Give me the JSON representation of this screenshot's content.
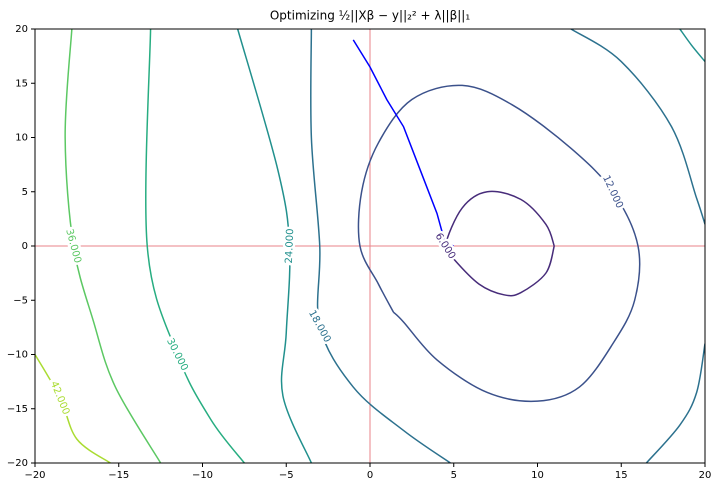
{
  "chart_data": {
    "type": "contour",
    "title": "Optimizing ½||Xβ − y||₂² + λ||β||₁",
    "xlim": [
      -20,
      20
    ],
    "ylim": [
      -20,
      20
    ],
    "xticks": [
      {
        "value": -20,
        "label": "−20"
      },
      {
        "value": -15,
        "label": "−15"
      },
      {
        "value": -10,
        "label": "−10"
      },
      {
        "value": -5,
        "label": "−5"
      },
      0,
      5,
      10,
      15,
      20
    ],
    "yticks": [
      {
        "value": -20,
        "label": "−20"
      },
      {
        "value": -15,
        "label": "−15"
      },
      {
        "value": -10,
        "label": "−10"
      },
      {
        "value": -5,
        "label": "−5"
      },
      0,
      5,
      10,
      15,
      20
    ],
    "axhline": 0,
    "axvline": 0,
    "ref_color": "#e8838a",
    "contours": [
      {
        "level": {
          "value": 6,
          "label": "6.000"
        },
        "color": "#472c7a",
        "pieces": [
          {
            "x": [
              11,
              10.5,
              9,
              7,
              5.5,
              4.5,
              5,
              6.5,
              8,
              9,
              10.5,
              11
            ],
            "y": [
              0,
              2,
              4.3,
              5,
              3.5,
              0,
              -1.2,
              -3.5,
              -4.5,
              -4.3,
              -2.5,
              0
            ]
          }
        ]
      },
      {
        "level": {
          "value": 12,
          "label": "12.000"
        },
        "color": "#3b518b",
        "pieces": [
          {
            "x": [
              1.4,
              0.5,
              -0.6,
              -0.5,
              0.5,
              2.5,
              5.5,
              8.5,
              12,
              14.5,
              16,
              15.8,
              14.5,
              12.5,
              10,
              7,
              4,
              2,
              1.4
            ],
            "y": [
              -6.1,
              -3.5,
              0,
              5,
              9.5,
              13.5,
              14.8,
              13,
              9,
              5,
              0,
              -5,
              -9,
              -13,
              -14.3,
              -13.5,
              -10.5,
              -7,
              -6.1
            ]
          }
        ]
      },
      {
        "level": {
          "value": 18,
          "label": "18.000"
        },
        "color": "#2c718e",
        "pieces": [
          {
            "x": [
              -3.5,
              -3.5,
              -3,
              -3,
              -1,
              2,
              4.8
            ],
            "y": [
              20,
              10,
              0,
              -7.4,
              -13,
              -17,
              -20
            ]
          },
          {
            "x": [
              12,
              15,
              18,
              19.5,
              20
            ],
            "y": [
              20,
              17,
              11,
              4.4,
              2
            ]
          },
          {
            "x": [
              20,
              19.5,
              18.5,
              16.5
            ],
            "y": [
              -9,
              -13.5,
              -16.5,
              -20
            ]
          }
        ]
      },
      {
        "level": {
          "value": 24,
          "label": "24.000"
        },
        "color": "#21908d",
        "pieces": [
          {
            "x": [
              -7.9,
              -5.5,
              -4.8,
              -5,
              -5.2,
              -3.5
            ],
            "y": [
              20,
              7,
              0,
              -8,
              -13.8,
              -20
            ]
          },
          {
            "x": [
              18.5,
              19.2,
              20
            ],
            "y": [
              20,
              18.5,
              17
            ]
          }
        ]
      },
      {
        "level": {
          "value": 30,
          "label": "30.000"
        },
        "color": "#27ad81",
        "pieces": [
          {
            "x": [
              -13.1,
              -13.3,
              -11.5,
              -9.5,
              -7.5
            ],
            "y": [
              20,
              0,
              -10,
              -16,
              -20
            ]
          }
        ]
      },
      {
        "level": {
          "value": 36,
          "label": "36.000"
        },
        "color": "#5cc863",
        "pieces": [
          {
            "x": [
              -17.8,
              -18.2,
              -17.7,
              -16.5,
              -15.2,
              -12.5
            ],
            "y": [
              20,
              10,
              0,
              -7,
              -13,
              -20
            ]
          }
        ]
      },
      {
        "level": {
          "value": 42,
          "label": "42.000"
        },
        "color": "#aadc32",
        "pieces": [
          {
            "x": [
              -20,
              -18.5,
              -17.5,
              -15.5
            ],
            "y": [
              -10,
              -14,
              -17.8,
              -20
            ]
          }
        ]
      }
    ],
    "series": [
      {
        "color": "#0000ff",
        "x": [
          -1,
          0,
          1,
          2,
          3,
          4,
          4.5,
          5
        ],
        "y": [
          19,
          16.5,
          13.5,
          11,
          7,
          3,
          0.2,
          0
        ]
      }
    ]
  }
}
